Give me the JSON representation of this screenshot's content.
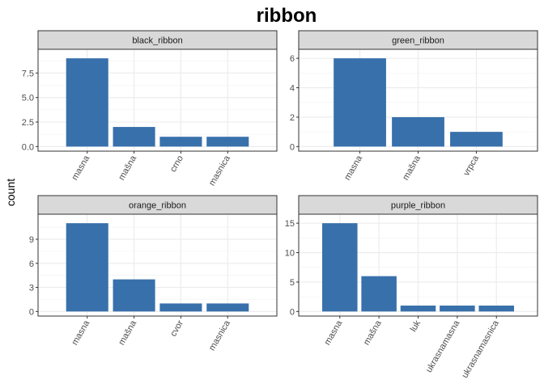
{
  "chart_data": {
    "type": "bar",
    "title": "ribbon",
    "ylabel": "count",
    "xlabel": "",
    "bar_color": "#3870AB",
    "strip_color": "#D9D9D9",
    "panel_border_color": "#333333",
    "grid": true,
    "facets": [
      {
        "name": "black_ribbon",
        "categories": [
          "masna",
          "mašna",
          "crno",
          "masnica"
        ],
        "values": [
          9,
          2,
          1,
          1
        ],
        "ylim": [
          0,
          9.45
        ],
        "yticks": [
          0,
          2.5,
          5,
          7.5
        ],
        "yticklabels": [
          "0.0",
          "2.5",
          "5.0",
          "7.5"
        ]
      },
      {
        "name": "green_ribbon",
        "categories": [
          "masna",
          "mašna",
          "vrpca"
        ],
        "values": [
          6,
          2,
          1
        ],
        "ylim": [
          0,
          6.3
        ],
        "yticks": [
          0,
          2,
          4,
          6
        ],
        "yticklabels": [
          "0",
          "2",
          "4",
          "6"
        ]
      },
      {
        "name": "orange_ribbon",
        "categories": [
          "masna",
          "mašna",
          "cvor",
          "masnica"
        ],
        "values": [
          11,
          4,
          1,
          1
        ],
        "ylim": [
          0,
          11.55
        ],
        "yticks": [
          0,
          3,
          6,
          9
        ],
        "yticklabels": [
          "0",
          "3",
          "6",
          "9"
        ]
      },
      {
        "name": "purple_ribbon",
        "categories": [
          "masna",
          "mašna",
          "luk",
          "ukrasnamasna",
          "ukrasnamasnica"
        ],
        "values": [
          15,
          6,
          1,
          1,
          1
        ],
        "ylim": [
          0,
          15.75
        ],
        "yticks": [
          0,
          5,
          10,
          15
        ],
        "yticklabels": [
          "0",
          "5",
          "10",
          "15"
        ]
      }
    ]
  }
}
